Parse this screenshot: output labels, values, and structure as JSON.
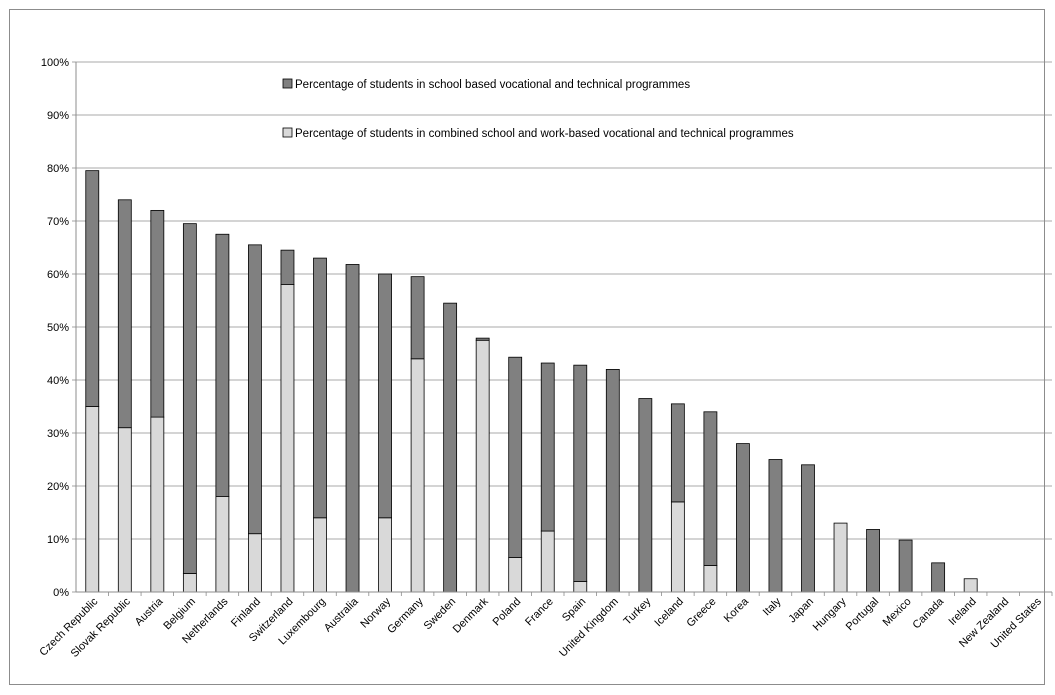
{
  "chart_data": {
    "type": "bar",
    "stacked": true,
    "categories": [
      "Czech Republic",
      "Slovak Republic",
      "Austria",
      "Belgium",
      "Netherlands",
      "Finland",
      "Switzerland",
      "Luxembourg",
      "Australia",
      "Norway",
      "Germany",
      "Sweden",
      "Denmark",
      "Poland",
      "France",
      "Spain",
      "United Kingdom",
      "Turkey",
      "Iceland",
      "Greece",
      "Korea",
      "Italy",
      "Japan",
      "Hungary",
      "Portugal",
      "Mexico",
      "Canada",
      "Ireland",
      "New Zealand",
      "United States"
    ],
    "series": [
      {
        "name": "Percentage of students in combined school and work-based vocational and technical programmes",
        "color": "#d9d9d9",
        "values": [
          35,
          31,
          33,
          3.5,
          18,
          11,
          58,
          14,
          0,
          14,
          44,
          0,
          47.5,
          6.5,
          11.5,
          2,
          0,
          0,
          17,
          5,
          0,
          0,
          0,
          13,
          0,
          0,
          0,
          2.5,
          0,
          0
        ]
      },
      {
        "name": "Percentage of students in school based vocational and technical programmes",
        "color": "#808080",
        "values": [
          44.5,
          43,
          39,
          66,
          49.5,
          54.5,
          6.5,
          49,
          61.8,
          46,
          15.5,
          54.5,
          0.4,
          37.8,
          31.7,
          40.8,
          42,
          36.5,
          18.5,
          29,
          28,
          25,
          24,
          0,
          11.8,
          9.8,
          5.5,
          0,
          0,
          0
        ]
      }
    ],
    "y_ticks": [
      "0%",
      "10%",
      "20%",
      "30%",
      "40%",
      "50%",
      "60%",
      "70%",
      "80%",
      "90%",
      "100%"
    ],
    "ylim": [
      0,
      100
    ],
    "grid": true,
    "legend_position": "top-center"
  }
}
